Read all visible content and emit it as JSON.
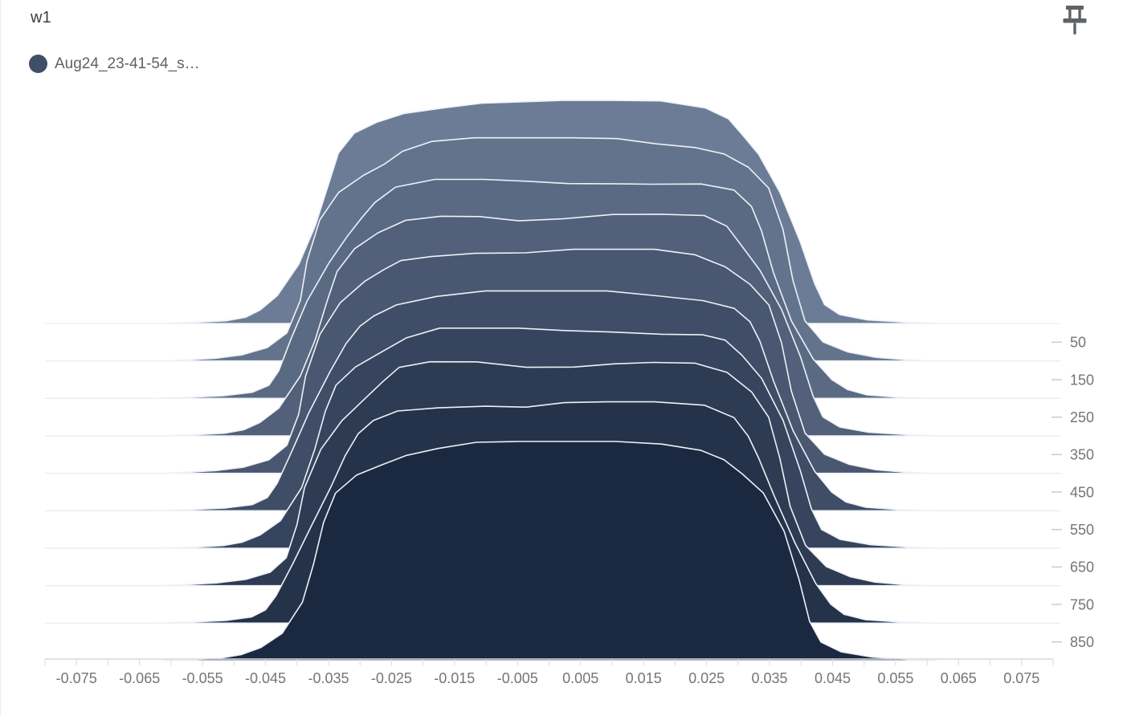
{
  "header": {
    "title": "w1"
  },
  "legend": {
    "run_name": "Aug24_23-41-54_s…",
    "dot_color": "#3f4f68"
  },
  "toolbar": {
    "pin_icon": "push-pin"
  },
  "chart_data": {
    "type": "area",
    "subtype": "histogram-ridgeline-offset",
    "title": "w1",
    "series": [
      {
        "name": "Aug24_23-41-54_s…"
      }
    ],
    "steps": [
      0,
      100,
      200,
      300,
      400,
      500,
      600,
      700,
      800,
      900
    ],
    "step_axis": {
      "side": "right",
      "min": 0,
      "max": 900,
      "tick_values": [
        50,
        150,
        250,
        350,
        450,
        550,
        650,
        750,
        850
      ],
      "tick_labels": [
        "50",
        "150",
        "250",
        "350",
        "450",
        "550",
        "650",
        "750",
        "850"
      ],
      "gridlines_at_steps": [
        0,
        100,
        200,
        300,
        400,
        500,
        600,
        700,
        800
      ]
    },
    "value_axis": {
      "side": "bottom",
      "min": -0.08,
      "max": 0.08,
      "minor_tick_step": 0.005,
      "tick_values": [
        -0.075,
        -0.065,
        -0.055,
        -0.045,
        -0.035,
        -0.025,
        -0.015,
        -0.005,
        0.005,
        0.015,
        0.025,
        0.035,
        0.045,
        0.055,
        0.065,
        0.075
      ],
      "tick_labels": [
        "-0.075",
        "-0.065",
        "-0.055",
        "-0.045",
        "-0.035",
        "-0.025",
        "-0.015",
        "-0.005",
        "0.005",
        "0.015",
        "0.025",
        "0.035",
        "0.045",
        "0.055",
        "0.065",
        "0.075"
      ]
    },
    "profile": {
      "values": [
        -0.062,
        -0.057,
        -0.052,
        -0.048,
        -0.045,
        -0.0425,
        -0.04,
        -0.038,
        -0.0355,
        -0.033,
        -0.03,
        -0.027,
        -0.0235,
        -0.018,
        -0.011,
        -0.004,
        0.003,
        0.01,
        0.017,
        0.024,
        0.0285,
        0.0315,
        0.034,
        0.0365,
        0.039,
        0.0415,
        0.044,
        0.047,
        0.051,
        0.056,
        0.061
      ],
      "density": [
        0.0,
        0.005,
        0.012,
        0.028,
        0.06,
        0.125,
        0.27,
        0.44,
        0.62,
        0.75,
        0.84,
        0.9,
        0.955,
        0.985,
        1.0,
        0.99,
        0.995,
        1.0,
        0.99,
        0.975,
        0.935,
        0.86,
        0.76,
        0.58,
        0.36,
        0.18,
        0.085,
        0.04,
        0.016,
        0.006,
        0.0
      ]
    },
    "colors": {
      "fill_first": "#6d7c96",
      "fill_last": "#1b2940",
      "stroke": "#edf1f7",
      "gridline": "#e4e4e4",
      "axis_line": "#d9d9d9",
      "tick": "#cccccc",
      "tick_label": "#757575"
    }
  }
}
